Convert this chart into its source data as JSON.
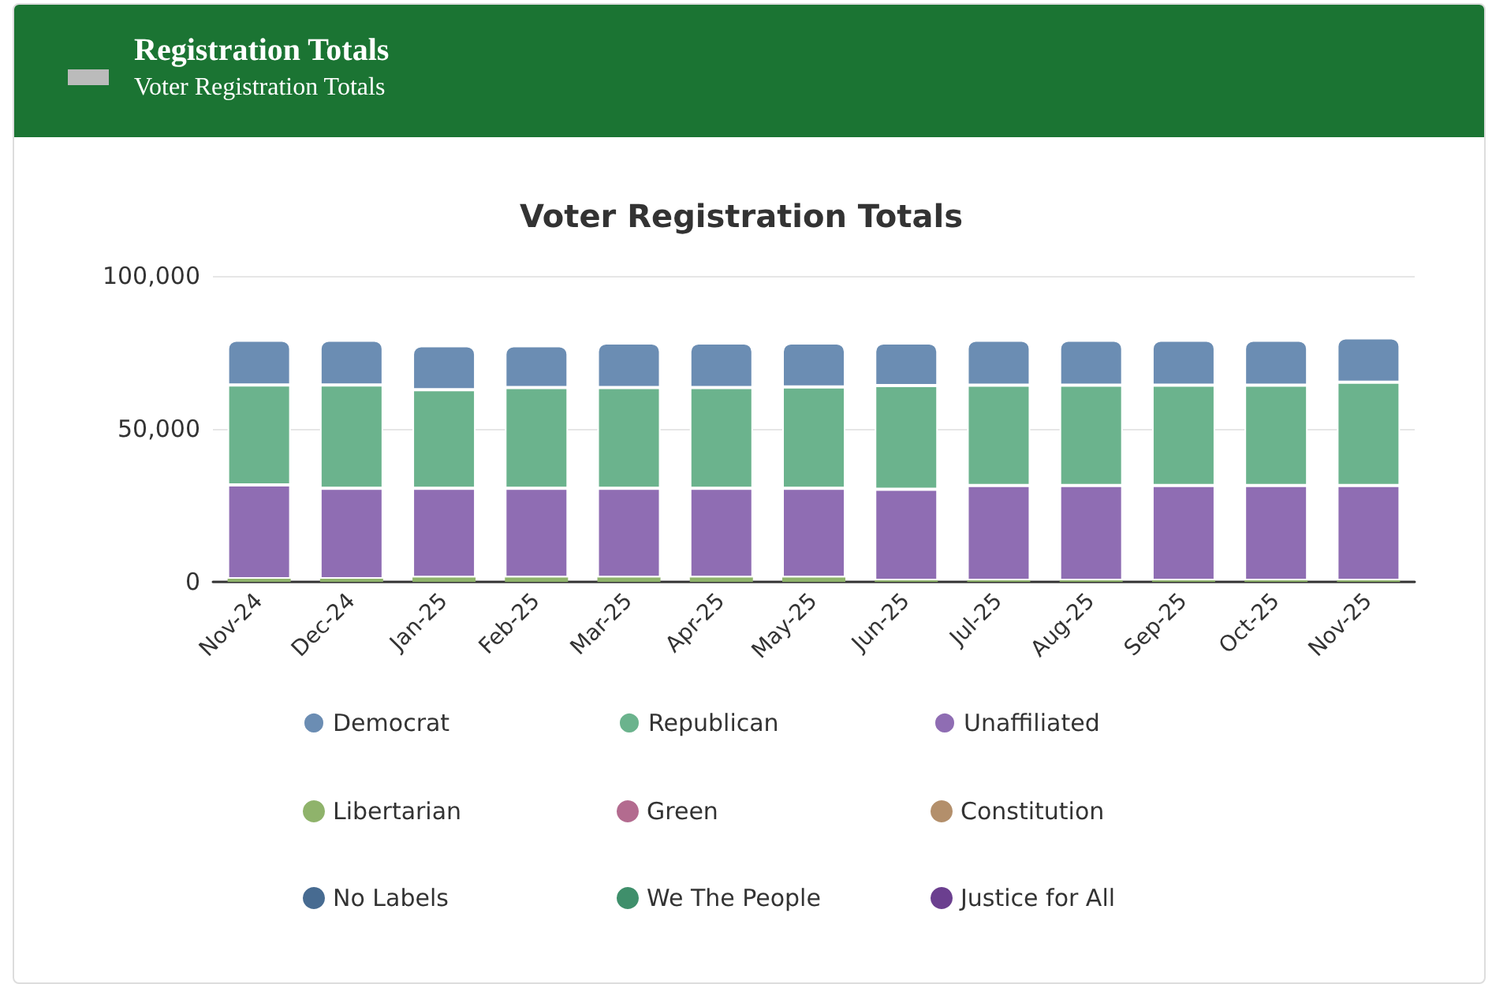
{
  "chart_data": {
    "type": "bar",
    "title": "Voter Registration Totals",
    "annotations": [
      "Registration Totals",
      "Voter Registration Totals"
    ],
    "categories": [
      "Nov-24",
      "Dec-24",
      "Jan-25",
      "Feb-25",
      "Mar-25",
      "Apr-25",
      "May-25",
      "Jun-25",
      "Jul-25",
      "Aug-25",
      "Sep-25",
      "Oct-25",
      "Nov-25"
    ],
    "stacked": true,
    "grid": "y",
    "legend": "bottom",
    "marker": "circle",
    "ylim": [
      0,
      100000
    ],
    "yticks": [
      0,
      {
        "value": 50000,
        "label": "50,000"
      },
      {
        "value": 100000,
        "label": "100,000"
      }
    ],
    "series": [
      {
        "name": "Justice for All",
        "color": "#6b3f8f",
        "values": [
          0,
          0,
          0,
          0,
          0,
          0,
          0,
          0,
          0,
          0,
          0,
          0,
          0
        ]
      },
      {
        "name": "We The People",
        "color": "#3f8f6b",
        "values": [
          0,
          0,
          0,
          0,
          0,
          0,
          0,
          0,
          0,
          0,
          0,
          0,
          0
        ]
      },
      {
        "name": "No Labels",
        "color": "#476b91",
        "values": [
          0,
          0,
          0,
          0,
          0,
          0,
          0,
          0,
          0,
          0,
          0,
          0,
          0
        ]
      },
      {
        "name": "Constitution",
        "color": "#b38f6b",
        "values": [
          0,
          0,
          0,
          0,
          0,
          0,
          0,
          0,
          0,
          0,
          0,
          0,
          0
        ]
      },
      {
        "name": "Green",
        "color": "#b36b8f",
        "values": [
          0,
          0,
          0,
          0,
          0,
          0,
          0,
          0,
          0,
          0,
          0,
          0,
          0
        ]
      },
      {
        "name": "Libertarian",
        "color": "#8fb36b",
        "values": [
          1000,
          1000,
          1500,
          1500,
          1500,
          1500,
          1500,
          500,
          500,
          500,
          500,
          500,
          500
        ]
      },
      {
        "name": "Unaffiliated",
        "color": "#8f6db3",
        "values": [
          30700,
          29600,
          29100,
          29100,
          29100,
          29100,
          29100,
          29800,
          31000,
          31000,
          31000,
          31000,
          31000
        ]
      },
      {
        "name": "Republican",
        "color": "#6bb38d",
        "values": [
          32700,
          33800,
          32200,
          32900,
          32900,
          32900,
          33100,
          33900,
          32800,
          32800,
          32800,
          32800,
          33800
        ]
      },
      {
        "name": "Democrat",
        "color": "#6b8db3",
        "values": [
          14600,
          14600,
          14400,
          13700,
          14600,
          14600,
          14400,
          13900,
          14700,
          14700,
          14700,
          14700,
          14500
        ]
      }
    ]
  }
}
